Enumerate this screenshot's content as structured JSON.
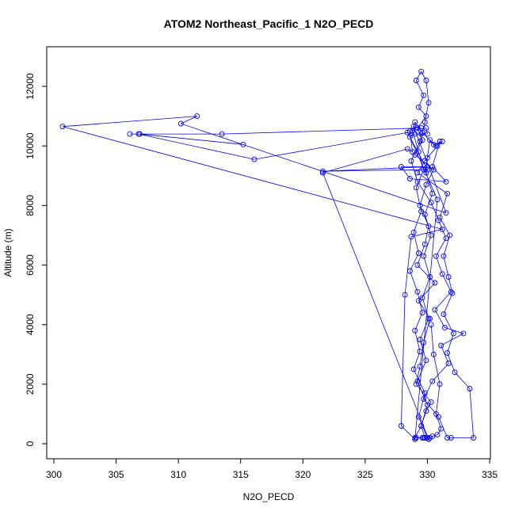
{
  "chart_data": {
    "type": "line",
    "title": "ATOM2 Northeast_Pacific_1 N2O_PECD",
    "xlabel": "N2O_PECD",
    "ylabel": "Altitude (m)",
    "xlim": [
      300,
      335
    ],
    "ylim": [
      0,
      12500
    ],
    "xticks": [
      300,
      305,
      310,
      315,
      320,
      325,
      330,
      335
    ],
    "yticks": [
      0,
      2000,
      4000,
      6000,
      8000,
      10000,
      12000
    ],
    "grid": false,
    "legend": "none",
    "series": [
      {
        "color": "#0000ff",
        "marker": "open-circle",
        "points": [
          [
            329.8,
            200
          ],
          [
            329.5,
            600
          ],
          [
            329.9,
            1100
          ],
          [
            330.3,
            1400
          ],
          [
            329.1,
            2000
          ],
          [
            329.4,
            2600
          ],
          [
            329.7,
            3400
          ],
          [
            330.2,
            4200
          ],
          [
            329.3,
            4800
          ],
          [
            330.6,
            5400
          ],
          [
            329.2,
            6000
          ],
          [
            329.8,
            6700
          ],
          [
            330.1,
            7300
          ],
          [
            329.4,
            8000
          ],
          [
            329.9,
            8700
          ],
          [
            330.5,
            9200
          ],
          [
            329.0,
            9700
          ],
          [
            329.6,
            10200
          ],
          [
            329.2,
            10600
          ],
          [
            329.9,
            11000
          ],
          [
            329.3,
            11300
          ],
          [
            329.7,
            11700
          ],
          [
            329.1,
            12200
          ],
          [
            329.5,
            12500
          ],
          [
            329.9,
            12200
          ],
          [
            330.1,
            11450
          ],
          [
            329.8,
            10800
          ],
          [
            329.4,
            10150
          ],
          [
            328.7,
            9500
          ],
          [
            329.2,
            8800
          ],
          [
            330.3,
            8100
          ],
          [
            330.9,
            7500
          ],
          [
            331.5,
            6900
          ],
          [
            330.7,
            6300
          ],
          [
            331.2,
            5700
          ],
          [
            331.9,
            5100
          ],
          [
            330.6,
            4500
          ],
          [
            331.4,
            3900
          ],
          [
            332.9,
            3700
          ],
          [
            331.1,
            3300
          ],
          [
            331.7,
            2700
          ],
          [
            330.4,
            2100
          ],
          [
            329.7,
            1500
          ],
          [
            330.9,
            900
          ],
          [
            331.6,
            200
          ],
          [
            331.9,
            200
          ],
          [
            333.7,
            200
          ],
          [
            333.4,
            1850
          ],
          [
            332.2,
            2400
          ],
          [
            331.6,
            3050
          ],
          [
            332.1,
            3700
          ],
          [
            331.3,
            4350
          ],
          [
            332.0,
            5050
          ],
          [
            331.7,
            5600
          ],
          [
            331.3,
            6300
          ],
          [
            331.8,
            7000
          ],
          [
            331.0,
            7600
          ],
          [
            331.6,
            8400
          ],
          [
            329.2,
            9100
          ],
          [
            329.8,
            9500
          ],
          [
            330.8,
            10000
          ],
          [
            331.2,
            10150
          ],
          [
            330.5,
            10050
          ],
          [
            329.6,
            10450
          ],
          [
            329.0,
            10800
          ],
          [
            328.8,
            10500
          ],
          [
            329.3,
            9800
          ],
          [
            329.7,
            9200
          ],
          [
            329.1,
            8600
          ],
          [
            329.5,
            7800
          ],
          [
            328.9,
            7100
          ],
          [
            329.3,
            6400
          ],
          [
            328.6,
            5800
          ],
          [
            329.2,
            5100
          ],
          [
            329.6,
            4400
          ],
          [
            329.0,
            3800
          ],
          [
            329.4,
            3100
          ],
          [
            328.9,
            2500
          ],
          [
            329.8,
            1700
          ],
          [
            329.3,
            900
          ],
          [
            330.0,
            200
          ],
          [
            330.2,
            200
          ],
          [
            329.7,
            200
          ],
          [
            329.6,
            200
          ],
          [
            329.1,
            200
          ],
          [
            329.0,
            200
          ],
          [
            329.5,
            600
          ],
          [
            330.0,
            1300
          ],
          [
            329.2,
            2100
          ],
          [
            329.9,
            2800
          ],
          [
            329.4,
            3500
          ],
          [
            330.1,
            4200
          ],
          [
            329.6,
            4900
          ],
          [
            330.2,
            5600
          ],
          [
            329.7,
            6300
          ],
          [
            330.3,
            7000
          ],
          [
            329.8,
            7700
          ],
          [
            330.4,
            8400
          ],
          [
            329.9,
            9100
          ],
          [
            330.0,
            9600
          ],
          [
            330.2,
            10200
          ],
          [
            330.7,
            10000
          ],
          [
            331.0,
            10150
          ],
          [
            330.4,
            9300
          ],
          [
            331.5,
            8800
          ],
          [
            328.6,
            8900
          ],
          [
            327.9,
            9300
          ],
          [
            330.0,
            9300
          ],
          [
            321.6,
            9150
          ],
          [
            330.0,
            9200
          ],
          [
            328.4,
            10450
          ],
          [
            316.1,
            9550
          ],
          [
            306.8,
            10400
          ],
          [
            315.2,
            10050
          ],
          [
            306.9,
            10400
          ],
          [
            306.1,
            10400
          ],
          [
            313.5,
            10400
          ],
          [
            329.5,
            10600
          ],
          [
            328.9,
            10650
          ],
          [
            331.5,
            7750
          ],
          [
            310.2,
            10750
          ],
          [
            311.5,
            11000
          ],
          [
            300.7,
            10650
          ],
          [
            331.2,
            7200
          ],
          [
            328.7,
            6950
          ],
          [
            328.2,
            5000
          ],
          [
            327.9,
            600
          ],
          [
            329.0,
            150
          ],
          [
            330.8,
            8200
          ],
          [
            328.6,
            10300
          ],
          [
            329.0,
            10400
          ],
          [
            329.5,
            10400
          ],
          [
            330.0,
            10400
          ],
          [
            329.9,
            10600
          ],
          [
            328.6,
            10500
          ],
          [
            328.8,
            9800
          ],
          [
            328.4,
            9900
          ],
          [
            321.6,
            9100
          ],
          [
            330.1,
            150
          ],
          [
            330.4,
            250
          ],
          [
            330.8,
            300
          ],
          [
            331.1,
            500
          ],
          [
            330.7,
            1000
          ],
          [
            331.0,
            2000
          ],
          [
            330.5,
            3000
          ],
          [
            330.3,
            4000
          ]
        ]
      }
    ]
  }
}
